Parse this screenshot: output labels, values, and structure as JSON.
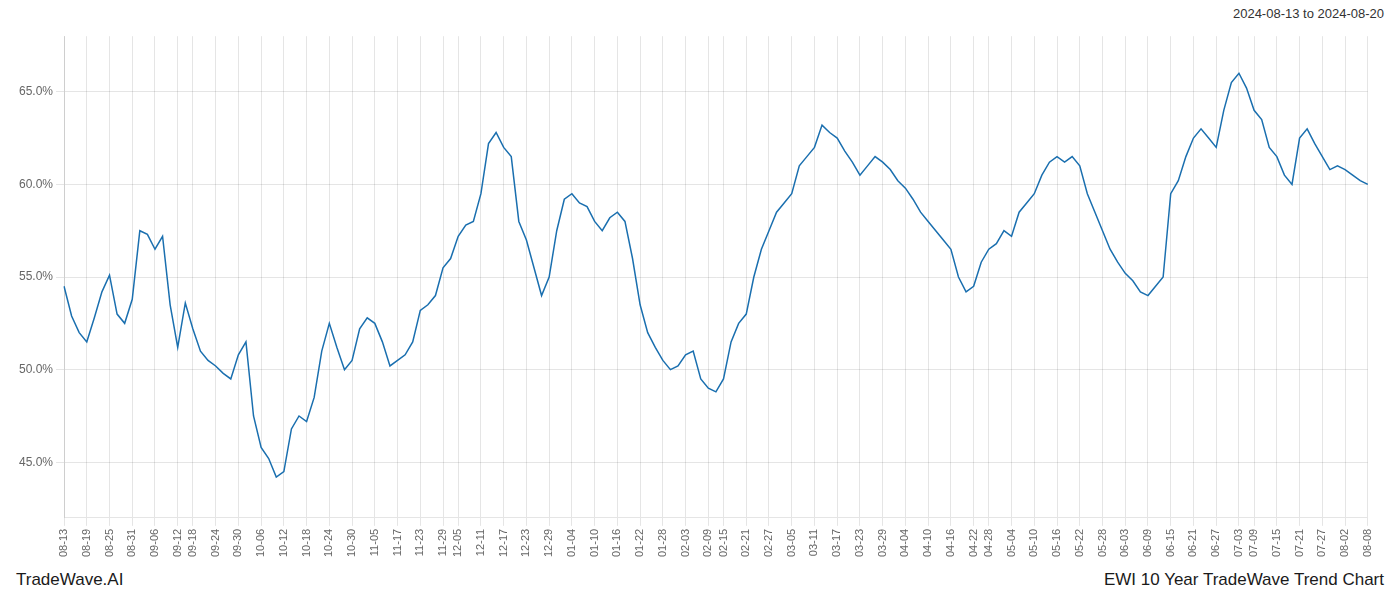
{
  "chart_data": {
    "type": "line",
    "title": "EWI 10 Year TradeWave Trend Chart",
    "subtitle": "2024-08-13 to 2024-08-20",
    "annotations": [
      "TradeWave.AI"
    ],
    "categories": [
      "08-13",
      null,
      null,
      "08-19",
      null,
      null,
      "08-25",
      null,
      null,
      "08-31",
      null,
      null,
      "09-06",
      null,
      null,
      "09-12",
      null,
      "09-18",
      null,
      null,
      "09-24",
      null,
      null,
      "09-30",
      null,
      null,
      "10-06",
      null,
      null,
      "10-12",
      null,
      null,
      "10-18",
      null,
      null,
      "10-24",
      null,
      null,
      "10-30",
      null,
      null,
      "11-05",
      null,
      null,
      "11-17",
      null,
      null,
      "11-23",
      null,
      null,
      "11-29",
      null,
      "12-05",
      null,
      null,
      "12-11",
      null,
      null,
      "12-17",
      null,
      null,
      "12-23",
      null,
      null,
      "12-29",
      null,
      null,
      "01-04",
      null,
      null,
      "01-10",
      null,
      null,
      "01-16",
      null,
      null,
      "01-22",
      null,
      null,
      "01-28",
      null,
      null,
      "02-03",
      null,
      null,
      "02-09",
      null,
      "02-15",
      null,
      null,
      "02-21",
      null,
      null,
      "02-27",
      null,
      null,
      "03-05",
      null,
      null,
      "03-11",
      null,
      null,
      "03-17",
      null,
      null,
      "03-23",
      null,
      null,
      "03-29",
      null,
      null,
      "04-04",
      null,
      null,
      "04-10",
      null,
      null,
      "04-16",
      null,
      null,
      "04-22",
      null,
      "04-28",
      null,
      null,
      "05-04",
      null,
      null,
      "05-10",
      null,
      null,
      "05-16",
      null,
      null,
      "05-22",
      null,
      null,
      "05-28",
      null,
      null,
      "06-03",
      null,
      null,
      "06-09",
      null,
      null,
      "06-15",
      null,
      null,
      "06-21",
      null,
      null,
      "06-27",
      null,
      null,
      "07-03",
      null,
      "07-09",
      null,
      null,
      "07-15",
      null,
      null,
      "07-21",
      null,
      null,
      "07-27",
      null,
      null,
      "08-02",
      null,
      null,
      "08-08"
    ],
    "values": [
      54.5,
      52.9,
      52.0,
      51.5,
      52.8,
      54.2,
      55.1,
      53.0,
      52.5,
      53.8,
      57.5,
      57.3,
      56.5,
      57.2,
      53.5,
      51.2,
      53.6,
      52.2,
      51.0,
      50.5,
      50.2,
      49.8,
      49.5,
      50.8,
      51.5,
      47.5,
      45.8,
      45.2,
      44.2,
      44.5,
      46.8,
      47.5,
      47.2,
      48.5,
      51.0,
      52.5,
      51.2,
      50.0,
      50.5,
      52.2,
      52.8,
      52.5,
      51.5,
      50.2,
      50.5,
      50.8,
      51.5,
      53.2,
      53.5,
      54.0,
      55.5,
      56.0,
      57.2,
      57.8,
      58.0,
      59.5,
      62.2,
      62.8,
      62.0,
      61.5,
      58.0,
      57.0,
      55.5,
      54.0,
      55.0,
      57.5,
      59.2,
      59.5,
      59.0,
      58.8,
      58.0,
      57.5,
      58.2,
      58.5,
      58.0,
      56.0,
      53.5,
      52.0,
      51.2,
      50.5,
      50.0,
      50.2,
      50.8,
      51.0,
      49.5,
      49.0,
      48.8,
      49.5,
      51.5,
      52.5,
      53.0,
      55.0,
      56.5,
      57.5,
      58.5,
      59.0,
      59.5,
      61.0,
      61.5,
      62.0,
      63.2,
      62.8,
      62.5,
      61.8,
      61.2,
      60.5,
      61.0,
      61.5,
      61.2,
      60.8,
      60.2,
      59.8,
      59.2,
      58.5,
      58.0,
      57.5,
      57.0,
      56.5,
      55.0,
      54.2,
      54.5,
      55.8,
      56.5,
      56.8,
      57.5,
      57.2,
      58.5,
      59.0,
      59.5,
      60.5,
      61.2,
      61.5,
      61.2,
      61.5,
      61.0,
      59.5,
      58.5,
      57.5,
      56.5,
      55.8,
      55.2,
      54.8,
      54.2,
      54.0,
      54.5,
      55.0,
      59.5,
      60.2,
      61.5,
      62.5,
      63.0,
      62.5,
      62.0,
      64.0,
      65.5,
      66.0,
      65.2,
      64.0,
      63.5,
      62.0,
      61.5,
      60.5,
      60.0,
      62.5,
      63.0,
      62.2,
      61.5,
      60.8,
      61.0,
      60.8,
      60.5,
      60.2,
      60.0
    ],
    "color": "#1a6faf",
    "ylim": [
      42.0,
      68.0
    ],
    "yticks": [
      {
        "value": 45.0,
        "label": "45.0%"
      },
      {
        "value": 50.0,
        "label": "50.0%"
      },
      {
        "value": 55.0,
        "label": "55.0%"
      },
      {
        "value": 60.0,
        "label": "60.0%"
      },
      {
        "value": 65.0,
        "label": "65.0%"
      }
    ],
    "grid": true
  }
}
